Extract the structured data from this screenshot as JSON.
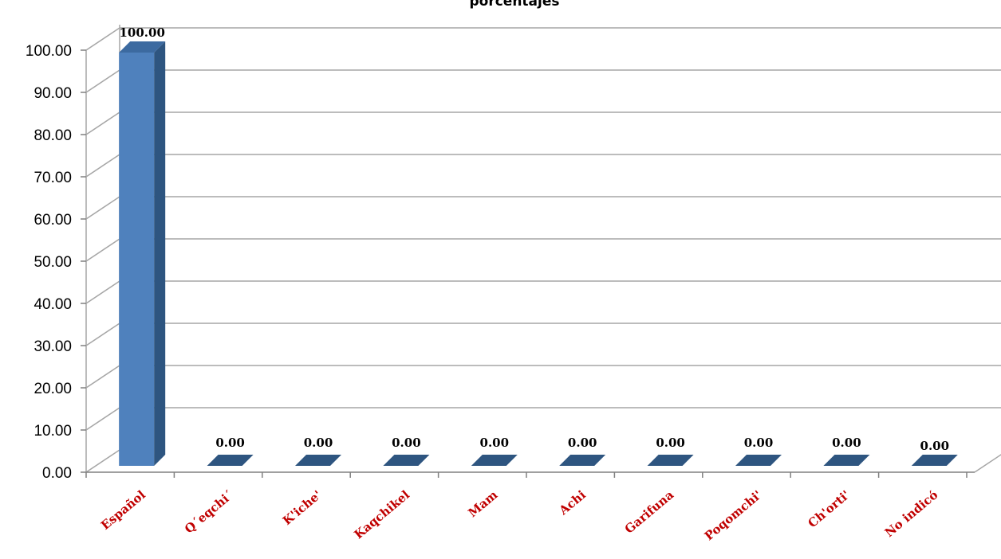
{
  "chart_data": {
    "type": "bar",
    "title": "porcentajes",
    "categories": [
      "Español",
      "Q´eqchi´",
      "K'iche'",
      "Kaqchikel",
      "Mam",
      "Achi",
      "Garifuna",
      "Poqomchi'",
      "Ch'orti'",
      "No indicó"
    ],
    "values": [
      100.0,
      0.0,
      0.0,
      0.0,
      0.0,
      0.0,
      0.0,
      0.0,
      0.0,
      0.0
    ],
    "data_labels": [
      "100.00",
      "0.00",
      "0.00",
      "0.00",
      "0.00",
      "0.00",
      "0.00",
      "0.00",
      "0.00",
      "0.00"
    ],
    "y_ticks": [
      "0.00",
      "10.00",
      "20.00",
      "30.00",
      "40.00",
      "50.00",
      "60.00",
      "70.00",
      "80.00",
      "90.00",
      "100.00"
    ],
    "ylim": [
      0,
      100
    ],
    "xlabel": "",
    "ylabel": "",
    "grid": true,
    "legend": "none",
    "style": "3d-column",
    "colors": {
      "bar_front": "#4f81bd",
      "bar_side": "#2e5580",
      "bar_top": "#3c6aa0",
      "gridline": "#a6a6a6",
      "category_label": "#c00000"
    }
  }
}
